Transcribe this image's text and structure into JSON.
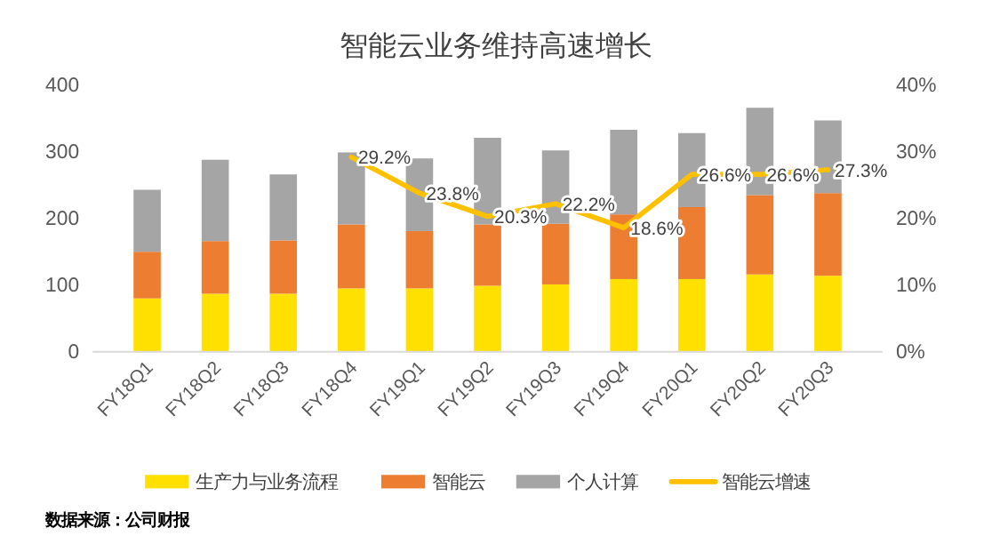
{
  "chart_data": {
    "type": "bar",
    "title": "智能云业务维持高速增长",
    "stacked": true,
    "categories": [
      "FY18Q1",
      "FY18Q2",
      "FY18Q3",
      "FY18Q4",
      "FY19Q1",
      "FY19Q2",
      "FY19Q3",
      "FY19Q4",
      "FY20Q1",
      "FY20Q2",
      "FY20Q3"
    ],
    "series": [
      {
        "name": "生产力与业务流程",
        "color": "#ffe000",
        "values": [
          80,
          87,
          87,
          95,
          95,
          99,
          101,
          109,
          109,
          116,
          114
        ]
      },
      {
        "name": "智能云",
        "color": "#ed7d31",
        "values": [
          70,
          79,
          80,
          96,
          86,
          92,
          91,
          97,
          108,
          119,
          124
        ]
      },
      {
        "name": "个人计算",
        "color": "#a5a5a5",
        "values": [
          93,
          122,
          99,
          108,
          109,
          130,
          110,
          127,
          111,
          131,
          109
        ]
      },
      {
        "name": "智能云增速",
        "type": "line",
        "axis": "y2",
        "color": "#ffc000",
        "values": [
          null,
          null,
          null,
          29.2,
          23.8,
          20.3,
          22.2,
          18.6,
          26.6,
          26.6,
          27.3
        ],
        "value_labels": [
          null,
          null,
          null,
          "29.2%",
          "23.8%",
          "20.3%",
          "22.2%",
          "18.6%",
          "26.6%",
          "26.6%",
          "27.3%"
        ]
      }
    ],
    "ylim": [
      0,
      400
    ],
    "yticks": [
      0,
      100,
      200,
      300,
      400
    ],
    "y2lim": [
      0,
      40
    ],
    "y2ticks": [
      {
        "value": 0,
        "label": "0%"
      },
      {
        "value": 10,
        "label": "10%"
      },
      {
        "value": 20,
        "label": "20%"
      },
      {
        "value": 30,
        "label": "30%"
      },
      {
        "value": 40,
        "label": "40%"
      }
    ],
    "grid": false,
    "legend": "bottom",
    "annotations": [
      "数据来源：公司财报"
    ]
  }
}
